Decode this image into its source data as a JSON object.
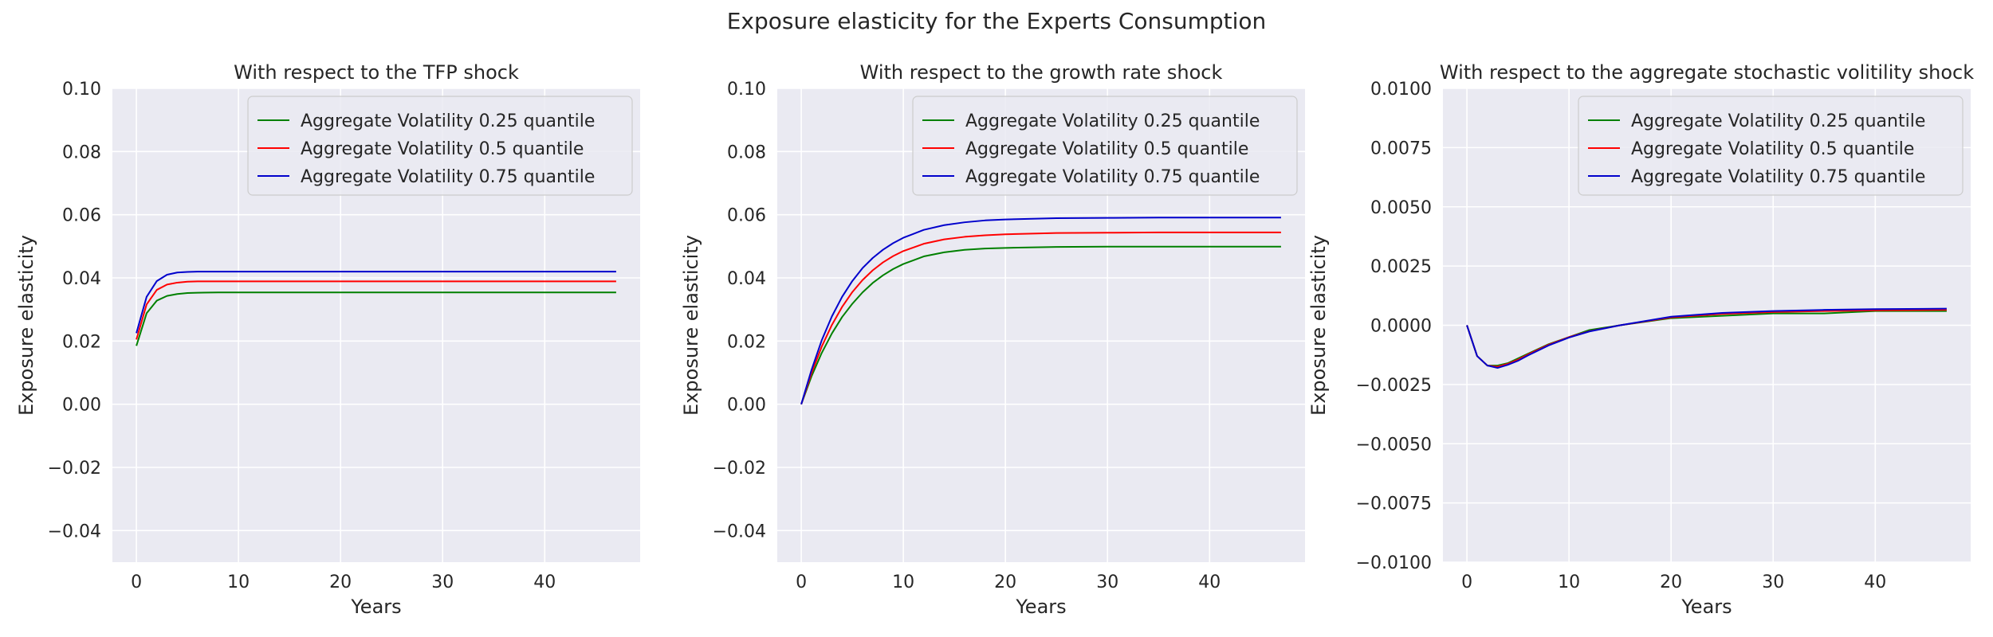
{
  "figure": {
    "title": "Exposure elasticity for the Experts Consumption"
  },
  "colors": {
    "plot_background": "#eaeaf2",
    "grid": "#ffffff",
    "series_025": "#008000",
    "series_05": "#ff0000",
    "series_075": "#0000cc"
  },
  "chart_data": [
    {
      "type": "line",
      "title": "With respect to the TFP shock",
      "xlabel": "Years",
      "ylabel": "Exposure elasticity",
      "xlim": [
        -2.35,
        49.35
      ],
      "ylim": [
        -0.05,
        0.1
      ],
      "xticks": [
        0,
        10,
        20,
        30,
        40
      ],
      "yticks": [
        -0.04,
        -0.02,
        0.0,
        0.02,
        0.04,
        0.06,
        0.08,
        0.1
      ],
      "ytick_labels": [
        "−0.04",
        "−0.02",
        "0.00",
        "0.02",
        "0.04",
        "0.06",
        "0.08",
        "0.10"
      ],
      "grid": true,
      "legend_position": "top-right",
      "series": [
        {
          "name": "Aggregate Volatility 0.25 quantile",
          "color": "#008000",
          "x": [
            0,
            1,
            2,
            3,
            4,
            5,
            6,
            8,
            10,
            15,
            20,
            30,
            40,
            47
          ],
          "y": [
            0.0185,
            0.0288,
            0.0328,
            0.0343,
            0.0349,
            0.0352,
            0.0353,
            0.0354,
            0.0354,
            0.0354,
            0.0354,
            0.0354,
            0.0354,
            0.0354
          ]
        },
        {
          "name": "Aggregate Volatility 0.5 quantile",
          "color": "#ff0000",
          "x": [
            0,
            1,
            2,
            3,
            4,
            5,
            6,
            8,
            10,
            15,
            20,
            30,
            40,
            47
          ],
          "y": [
            0.0205,
            0.0316,
            0.0362,
            0.0379,
            0.0385,
            0.0388,
            0.0389,
            0.0389,
            0.0389,
            0.0389,
            0.0389,
            0.0389,
            0.0389,
            0.0389
          ]
        },
        {
          "name": "Aggregate Volatility 0.75 quantile",
          "color": "#0000cc",
          "x": [
            0,
            1,
            2,
            3,
            4,
            5,
            6,
            8,
            10,
            15,
            20,
            30,
            40,
            47
          ],
          "y": [
            0.0225,
            0.034,
            0.039,
            0.041,
            0.0417,
            0.0419,
            0.042,
            0.042,
            0.042,
            0.042,
            0.042,
            0.042,
            0.042,
            0.042
          ]
        }
      ]
    },
    {
      "type": "line",
      "title": "With respect to the growth rate shock",
      "xlabel": "Years",
      "ylabel": "Exposure elasticity",
      "xlim": [
        -2.35,
        49.35
      ],
      "ylim": [
        -0.05,
        0.1
      ],
      "xticks": [
        0,
        10,
        20,
        30,
        40
      ],
      "yticks": [
        -0.04,
        -0.02,
        0.0,
        0.02,
        0.04,
        0.06,
        0.08,
        0.1
      ],
      "ytick_labels": [
        "−0.04",
        "−0.02",
        "0.00",
        "0.02",
        "0.04",
        "0.06",
        "0.08",
        "0.10"
      ],
      "grid": true,
      "legend_position": "top-right",
      "series": [
        {
          "name": "Aggregate Volatility 0.25 quantile",
          "color": "#008000",
          "x": [
            0,
            1,
            2,
            3,
            4,
            5,
            6,
            7,
            8,
            9,
            10,
            12,
            14,
            16,
            18,
            20,
            25,
            30,
            35,
            40,
            47
          ],
          "y": [
            0.0,
            0.0088,
            0.0162,
            0.0224,
            0.0276,
            0.0318,
            0.0354,
            0.0384,
            0.0408,
            0.0428,
            0.0444,
            0.0468,
            0.0481,
            0.0489,
            0.0493,
            0.0495,
            0.0498,
            0.0499,
            0.0499,
            0.0499,
            0.0499
          ]
        },
        {
          "name": "Aggregate Volatility 0.5 quantile",
          "color": "#ff0000",
          "x": [
            0,
            1,
            2,
            3,
            4,
            5,
            6,
            7,
            8,
            9,
            10,
            12,
            14,
            16,
            18,
            20,
            25,
            30,
            35,
            40,
            47
          ],
          "y": [
            0.0,
            0.0098,
            0.0182,
            0.0251,
            0.0308,
            0.0355,
            0.0393,
            0.0424,
            0.0449,
            0.0469,
            0.0485,
            0.0508,
            0.0522,
            0.053,
            0.0535,
            0.0538,
            0.0542,
            0.0543,
            0.0544,
            0.0544,
            0.0544
          ]
        },
        {
          "name": "Aggregate Volatility 0.75 quantile",
          "color": "#0000cc",
          "x": [
            0,
            1,
            2,
            3,
            4,
            5,
            6,
            7,
            8,
            9,
            10,
            12,
            14,
            16,
            18,
            20,
            25,
            30,
            35,
            40,
            47
          ],
          "y": [
            0.0,
            0.0108,
            0.0202,
            0.0278,
            0.034,
            0.039,
            0.0431,
            0.0463,
            0.0489,
            0.051,
            0.0527,
            0.0552,
            0.0567,
            0.0576,
            0.0582,
            0.0585,
            0.0589,
            0.059,
            0.0591,
            0.0591,
            0.0591
          ]
        }
      ]
    },
    {
      "type": "line",
      "title": "With respect to the aggregate stochastic volitility shock",
      "xlabel": "Years",
      "ylabel": "Exposure elasticity",
      "xlim": [
        -2.35,
        49.35
      ],
      "ylim": [
        -0.01,
        0.01
      ],
      "xticks": [
        0,
        10,
        20,
        30,
        40
      ],
      "yticks": [
        -0.01,
        -0.0075,
        -0.005,
        -0.0025,
        0.0,
        0.0025,
        0.005,
        0.0075,
        0.01
      ],
      "ytick_labels": [
        "−0.0100",
        "−0.0075",
        "−0.0050",
        "−0.0025",
        "0.0000",
        "0.0025",
        "0.0050",
        "0.0075",
        "0.0100"
      ],
      "grid": true,
      "legend_position": "top-right",
      "series": [
        {
          "name": "Aggregate Volatility 0.25 quantile",
          "color": "#008000",
          "x": [
            0,
            1,
            2,
            3,
            4,
            5,
            6,
            8,
            10,
            12,
            15,
            20,
            25,
            30,
            35,
            40,
            47
          ],
          "y": [
            0.0,
            -0.0013,
            -0.0017,
            -0.0017,
            -0.0016,
            -0.0014,
            -0.0012,
            -0.0008,
            -0.0005,
            -0.0002,
            0.0,
            0.0003,
            0.0004,
            0.0005,
            0.0005,
            0.0006,
            0.0006
          ]
        },
        {
          "name": "Aggregate Volatility 0.5 quantile",
          "color": "#ff0000",
          "x": [
            0,
            1,
            2,
            3,
            4,
            5,
            6,
            8,
            10,
            12,
            15,
            20,
            25,
            30,
            35,
            40,
            47
          ],
          "y": [
            0.0,
            -0.0013,
            -0.0017,
            -0.00175,
            -0.00163,
            -0.00145,
            -0.00123,
            -0.00082,
            -0.0005,
            -0.00025,
            0.0,
            0.00033,
            0.00048,
            0.00056,
            0.0006,
            0.00063,
            0.00065
          ]
        },
        {
          "name": "Aggregate Volatility 0.75 quantile",
          "color": "#0000cc",
          "x": [
            0,
            1,
            2,
            3,
            4,
            5,
            6,
            8,
            10,
            12,
            15,
            20,
            25,
            30,
            35,
            40,
            47
          ],
          "y": [
            0.0,
            -0.0013,
            -0.0017,
            -0.0018,
            -0.00167,
            -0.0015,
            -0.00127,
            -0.00085,
            -0.00052,
            -0.00026,
            0.0,
            0.00036,
            0.00052,
            0.0006,
            0.00065,
            0.00068,
            0.0007
          ]
        }
      ]
    }
  ]
}
